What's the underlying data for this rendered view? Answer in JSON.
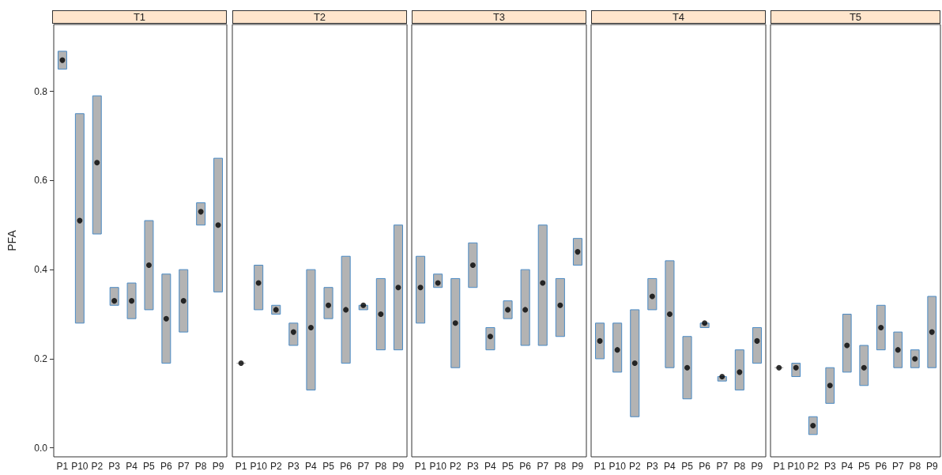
{
  "chart_data": [
    {
      "type": "bar",
      "title": "T1",
      "ylabel": "PFA",
      "categories": [
        "P1",
        "P10",
        "P2",
        "P3",
        "P4",
        "P5",
        "P6",
        "P7",
        "P8",
        "P9"
      ],
      "ylim": [
        -0.02,
        0.95
      ],
      "yticks": [
        {
          "value": 0,
          "label": "0.0"
        },
        {
          "value": 0.2,
          "label": "0.2"
        },
        {
          "value": 0.4,
          "label": "0.4"
        },
        {
          "value": 0.6,
          "label": "0.6"
        },
        {
          "value": 0.8,
          "label": "0.8"
        }
      ],
      "grid": false,
      "marker": "circle",
      "series": [
        {
          "type": "bar",
          "color": "#b3b3b3",
          "base": [
            0.85,
            0.28,
            0.48,
            0.32,
            0.29,
            0.31,
            0.19,
            0.26,
            0.5,
            0.35
          ],
          "values": [
            0.04,
            0.47,
            0.31,
            0.04,
            0.08,
            0.2,
            0.2,
            0.14,
            0.05,
            0.3
          ]
        },
        {
          "type": "scatter",
          "color": "#000000",
          "x": [
            "P1",
            "P10",
            "P2",
            "P3",
            "P4",
            "P5",
            "P6",
            "P7",
            "P8",
            "P9"
          ],
          "values": [
            0.87,
            0.51,
            0.64,
            0.33,
            0.33,
            0.41,
            0.29,
            0.33,
            0.53,
            0.5
          ]
        }
      ]
    },
    {
      "type": "bar",
      "title": "T2",
      "categories": [
        "P1",
        "P10",
        "P2",
        "P3",
        "P4",
        "P5",
        "P6",
        "P7",
        "P8",
        "P9"
      ],
      "ylim": [
        -0.02,
        0.95
      ],
      "tick_labels": "x",
      "grid": false,
      "marker": "circle",
      "series": [
        {
          "type": "bar",
          "color": "#b3b3b3",
          "base": [
            0.19,
            0.31,
            0.3,
            0.23,
            0.13,
            0.29,
            0.19,
            0.31,
            0.22,
            0.22
          ],
          "values": [
            0,
            0.1,
            0.02,
            0.05,
            0.27,
            0.07,
            0.24,
            0.01,
            0.16,
            0.28
          ]
        },
        {
          "type": "scatter",
          "color": "#000000",
          "x": [
            "P1",
            "P10",
            "P2",
            "P3",
            "P4",
            "P5",
            "P6",
            "P7",
            "P8",
            "P9"
          ],
          "values": [
            0.19,
            0.37,
            0.31,
            0.26,
            0.27,
            0.32,
            0.31,
            0.32,
            0.3,
            0.36
          ]
        }
      ]
    },
    {
      "type": "bar",
      "title": "T3",
      "categories": [
        "P1",
        "P10",
        "P2",
        "P3",
        "P4",
        "P5",
        "P6",
        "P7",
        "P8",
        "P9"
      ],
      "ylim": [
        -0.02,
        0.95
      ],
      "tick_labels": "x",
      "grid": false,
      "marker": "circle",
      "series": [
        {
          "type": "bar",
          "color": "#b3b3b3",
          "base": [
            0.28,
            0.36,
            0.18,
            0.36,
            0.22,
            0.29,
            0.23,
            0.23,
            0.25,
            0.41
          ],
          "values": [
            0.15,
            0.03,
            0.2,
            0.1,
            0.05,
            0.04,
            0.17,
            0.27,
            0.13,
            0.06
          ]
        },
        {
          "type": "scatter",
          "color": "#000000",
          "x": [
            "P1",
            "P10",
            "P2",
            "P3",
            "P4",
            "P5",
            "P6",
            "P7",
            "P8",
            "P9"
          ],
          "values": [
            0.36,
            0.37,
            0.28,
            0.41,
            0.25,
            0.31,
            0.31,
            0.37,
            0.32,
            0.44
          ]
        }
      ]
    },
    {
      "type": "bar",
      "title": "T4",
      "categories": [
        "P1",
        "P10",
        "P2",
        "P3",
        "P4",
        "P5",
        "P6",
        "P7",
        "P8",
        "P9"
      ],
      "ylim": [
        -0.02,
        0.95
      ],
      "tick_labels": "x",
      "grid": false,
      "marker": "circle",
      "series": [
        {
          "type": "bar",
          "color": "#b3b3b3",
          "base": [
            0.2,
            0.17,
            0.07,
            0.31,
            0.18,
            0.11,
            0.27,
            0.15,
            0.13,
            0.19
          ],
          "values": [
            0.08,
            0.11,
            0.24,
            0.07,
            0.24,
            0.14,
            0.01,
            0.01,
            0.09,
            0.08
          ]
        },
        {
          "type": "scatter",
          "color": "#000000",
          "x": [
            "P1",
            "P10",
            "P2",
            "P3",
            "P4",
            "P5",
            "P6",
            "P7",
            "P8",
            "P9"
          ],
          "values": [
            0.24,
            0.22,
            0.19,
            0.34,
            0.3,
            0.18,
            0.28,
            0.16,
            0.17,
            0.24
          ]
        }
      ]
    },
    {
      "type": "bar",
      "title": "T5",
      "categories": [
        "P1",
        "P10",
        "P2",
        "P3",
        "P4",
        "P5",
        "P6",
        "P7",
        "P8",
        "P9"
      ],
      "ylim": [
        -0.02,
        0.95
      ],
      "tick_labels": "x",
      "grid": false,
      "marker": "circle",
      "series": [
        {
          "type": "bar",
          "color": "#b3b3b3",
          "base": [
            0.18,
            0.16,
            0.03,
            0.1,
            0.17,
            0.14,
            0.22,
            0.18,
            0.18,
            0.18
          ],
          "values": [
            0,
            0.03,
            0.04,
            0.08,
            0.13,
            0.09,
            0.1,
            0.08,
            0.04,
            0.16
          ]
        },
        {
          "type": "scatter",
          "color": "#000000",
          "x": [
            "P1",
            "P10",
            "P2",
            "P3",
            "P4",
            "P5",
            "P6",
            "P7",
            "P8",
            "P9"
          ],
          "values": [
            0.18,
            0.18,
            0.05,
            0.14,
            0.23,
            0.18,
            0.27,
            0.22,
            0.2,
            0.26
          ]
        }
      ]
    }
  ]
}
